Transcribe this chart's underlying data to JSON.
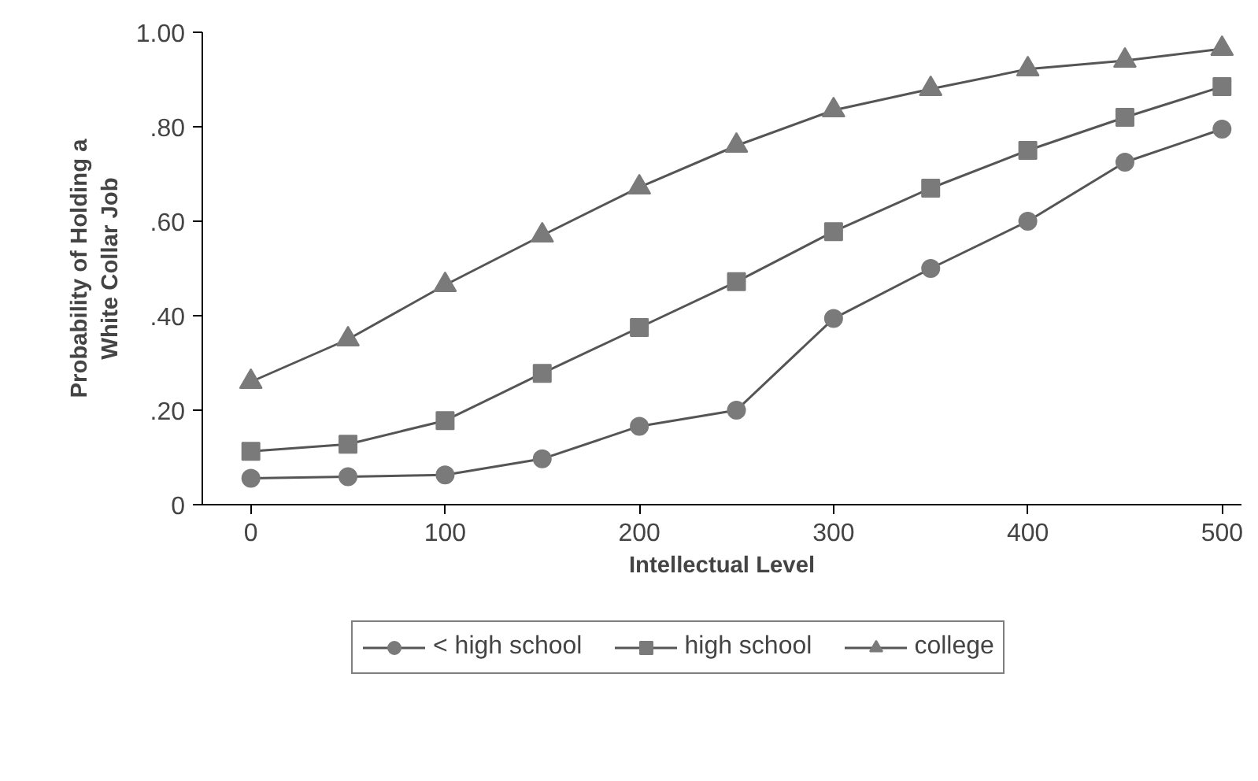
{
  "chart_data": {
    "type": "line",
    "xlabel": "Intellectual Level",
    "ylabel": "Probability of Holding a\nWhite Collar Job",
    "x": [
      0,
      50,
      100,
      150,
      200,
      250,
      300,
      350,
      400,
      450,
      500
    ],
    "xlim": [
      -25,
      510
    ],
    "xticks": [
      0,
      100,
      200,
      300,
      400,
      500
    ],
    "ylim": [
      0,
      1.0
    ],
    "yticks": [
      {
        "value": 0,
        "label": "0"
      },
      {
        "value": 0.2,
        "label": ".20"
      },
      {
        "value": 0.4,
        "label": ".40"
      },
      {
        "value": 0.6,
        "label": ".60"
      },
      {
        "value": 0.8,
        "label": ".80"
      },
      {
        "value": 1.0,
        "label": "1.00"
      }
    ],
    "grid": false,
    "legend": "bottom",
    "line_style": "solid",
    "series": [
      {
        "name": "< high school",
        "color": "#7a7a7a",
        "marker": "circle",
        "values": [
          0.056,
          0.059,
          0.063,
          0.097,
          0.166,
          0.2,
          0.394,
          0.5,
          0.6,
          0.725,
          0.795
        ]
      },
      {
        "name": "high school",
        "color": "#7a7a7a",
        "marker": "square",
        "values": [
          0.113,
          0.128,
          0.178,
          0.278,
          0.375,
          0.472,
          0.578,
          0.67,
          0.75,
          0.82,
          0.885
        ]
      },
      {
        "name": "college",
        "color": "#7a7a7a",
        "marker": "triangle",
        "values": [
          0.26,
          0.35,
          0.465,
          0.57,
          0.672,
          0.76,
          0.835,
          0.88,
          0.922,
          0.94,
          0.965
        ]
      }
    ]
  }
}
